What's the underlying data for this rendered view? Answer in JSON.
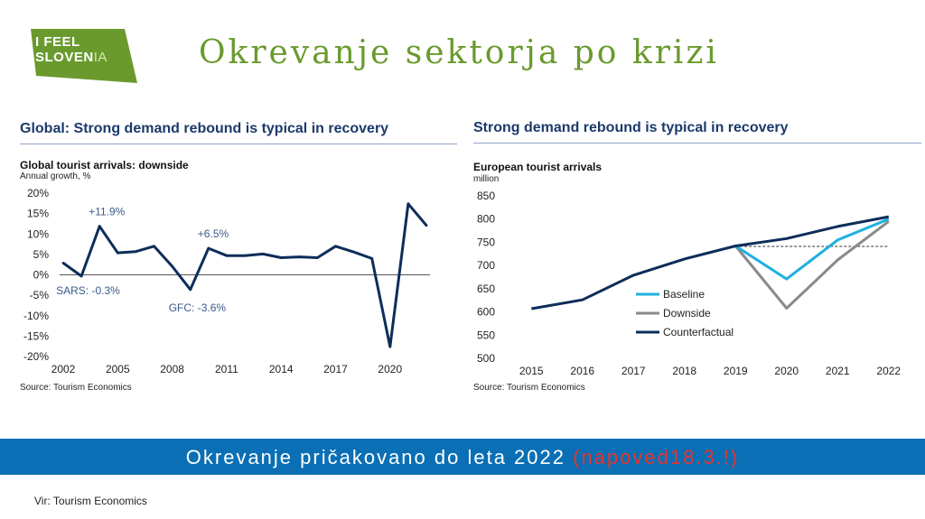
{
  "logo": {
    "line1": "I FEEL",
    "line2_bold": "SLOVE",
    "line2_mid": "N",
    "line2_thin": "IA",
    "color": "#6a9a2e"
  },
  "header": {
    "title": "Okrevanje sektorja po krizi"
  },
  "left_panel": {
    "title": "Global: Strong demand rebound is typical in recovery",
    "source": "Source: Tourism Economics"
  },
  "right_panel": {
    "title": "Strong demand rebound is typical in recovery",
    "source": "Source: Tourism Economics"
  },
  "banner": {
    "text": "Okrevanje pričakovano do leta 2022",
    "red_text": "(napoved18.3.!)",
    "color": "#0a6fb5"
  },
  "footer": {
    "text": "Vir: Tourism Economics"
  },
  "chart_data": [
    {
      "type": "line",
      "title": "Global tourist arrivals: downside",
      "ylabel": "Annual growth, %",
      "ylim": [
        -20,
        20
      ],
      "yticks": [
        "20%",
        "15%",
        "10%",
        "5%",
        "0%",
        "-5%",
        "-10%",
        "-15%",
        "-20%"
      ],
      "ytick_values": [
        20,
        15,
        10,
        5,
        0,
        -5,
        -10,
        -15,
        -20
      ],
      "xticks": [
        "2002",
        "2005",
        "2008",
        "2011",
        "2014",
        "2017",
        "2020"
      ],
      "xtick_values": [
        2002,
        2005,
        2008,
        2011,
        2014,
        2017,
        2020
      ],
      "xlim": [
        2001.8,
        2022.2
      ],
      "series": [
        {
          "x": [
            2002,
            2003,
            2004,
            2005,
            2006,
            2007,
            2008,
            2009,
            2010,
            2011,
            2012,
            2013,
            2014,
            2015,
            2016,
            2017,
            2018,
            2019,
            2020,
            2021,
            2022
          ],
          "values": [
            2.9,
            -0.3,
            11.9,
            5.4,
            5.7,
            7.0,
            2.1,
            -3.6,
            6.5,
            4.7,
            4.7,
            5.1,
            4.2,
            4.4,
            4.2,
            7.0,
            5.6,
            4.0,
            -17.6,
            17.4,
            12.1
          ],
          "color": "#0d2d5a"
        }
      ],
      "annotations": [
        {
          "text": "+11.9%",
          "x": 2004,
          "y": 11.9
        },
        {
          "text": "SARS: -0.3%",
          "x": 2003,
          "y": -0.3
        },
        {
          "text": "+6.5%",
          "x": 2010,
          "y": 6.5
        },
        {
          "text": "GFC: -3.6%",
          "x": 2009,
          "y": -3.6
        }
      ],
      "grid": false
    },
    {
      "type": "line",
      "title": "European tourist arrivals",
      "ylabel": "million",
      "ylim": [
        500,
        850
      ],
      "yticks": [
        "850",
        "800",
        "750",
        "700",
        "650",
        "600",
        "550",
        "500"
      ],
      "ytick_values": [
        850,
        800,
        750,
        700,
        650,
        600,
        550,
        500
      ],
      "xticks": [
        "2015",
        "2016",
        "2017",
        "2018",
        "2019",
        "2020",
        "2021",
        "2022"
      ],
      "xtick_values": [
        2015,
        2016,
        2017,
        2018,
        2019,
        2020,
        2021,
        2022
      ],
      "xlim": [
        2014.5,
        2022.5
      ],
      "legend_placement": "center-left",
      "reference_line": {
        "y": 741,
        "x_from": 2019,
        "x_to": 2022,
        "style": "dashed"
      },
      "series": [
        {
          "name": "Baseline",
          "x": [
            2019,
            2020,
            2021,
            2022
          ],
          "values": [
            742,
            671,
            755,
            800
          ],
          "color": "#1fb0e0"
        },
        {
          "name": "Downside",
          "x": [
            2019,
            2020,
            2021,
            2022
          ],
          "values": [
            742,
            608,
            712,
            795
          ],
          "color": "#8a8a8a"
        },
        {
          "name": "Counterfactual",
          "x": [
            2015,
            2016,
            2017,
            2018,
            2019,
            2020,
            2021,
            2022
          ],
          "values": [
            607,
            626,
            679,
            714,
            742,
            758,
            784,
            805
          ],
          "color": "#0d2d5a"
        }
      ],
      "grid": false
    }
  ]
}
